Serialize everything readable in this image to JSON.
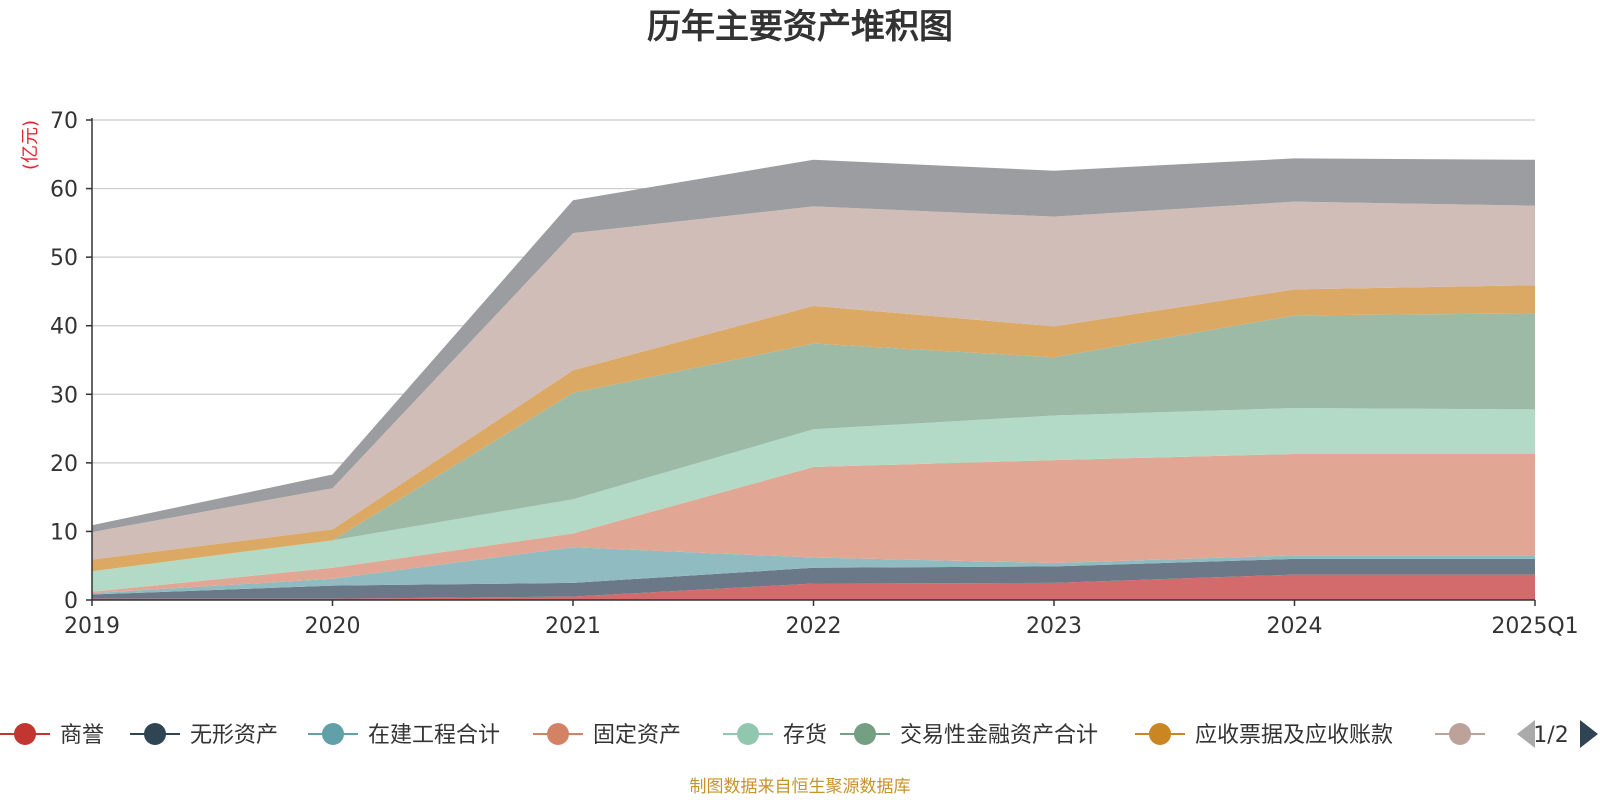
{
  "chart_data": {
    "type": "area",
    "stacked": true,
    "title": "历年主要资产堆积图",
    "ylabel": "(亿元)",
    "xlabel": "",
    "ylim": [
      0,
      70
    ],
    "yticks": [
      0,
      10,
      20,
      30,
      40,
      50,
      60,
      70
    ],
    "categories": [
      "2019",
      "2020",
      "2021",
      "2022",
      "2023",
      "2024",
      "2025Q1"
    ],
    "grid": true,
    "series": [
      {
        "name": "商誉",
        "color": "#d36a6b",
        "line": "#c23531",
        "values": [
          0.2,
          0.2,
          0.5,
          2.4,
          2.5,
          3.7,
          3.7
        ]
      },
      {
        "name": "无形资产",
        "color": "#6b7887",
        "line": "#2f4554",
        "values": [
          0.6,
          1.9,
          2.0,
          2.3,
          2.4,
          2.3,
          2.3
        ]
      },
      {
        "name": "在建工程合计",
        "color": "#8fbbc1",
        "line": "#61a0a8",
        "values": [
          0.2,
          1.0,
          5.2,
          1.5,
          0.5,
          0.5,
          0.5
        ]
      },
      {
        "name": "固定资产",
        "color": "#e1a794",
        "line": "#d48265",
        "values": [
          0.2,
          1.6,
          2.0,
          13.2,
          15.0,
          14.8,
          14.8
        ]
      },
      {
        "name": "存货",
        "color": "#b3dac7",
        "line": "#91c7ae",
        "values": [
          3.0,
          4.0,
          5.0,
          5.5,
          6.5,
          6.7,
          6.5
        ]
      },
      {
        "name": "交易性金融资产合计",
        "color": "#9cbaa6",
        "line": "#749f83",
        "values": [
          0.0,
          0.0,
          15.5,
          12.5,
          8.5,
          13.5,
          14.0
        ]
      },
      {
        "name": "应收票据及应收账款",
        "color": "#dba963",
        "line": "#ca8622",
        "values": [
          1.7,
          1.6,
          3.3,
          5.5,
          4.5,
          3.8,
          4.1
        ]
      },
      {
        "name": "",
        "color": "#d1bdb7",
        "line": "#bda29a",
        "values": [
          4.0,
          6.0,
          20.0,
          14.5,
          16.0,
          12.8,
          11.6
        ]
      },
      {
        "name": "",
        "color": "#9c9da1",
        "line": "#6e7074",
        "values": [
          1.0,
          2.0,
          4.8,
          6.8,
          6.7,
          6.3,
          6.7
        ]
      }
    ],
    "legend": {
      "position": "bottom",
      "visible_count": 8,
      "page": "1/2"
    }
  },
  "footer": {
    "source": "制图数据来自恒生聚源数据库"
  }
}
